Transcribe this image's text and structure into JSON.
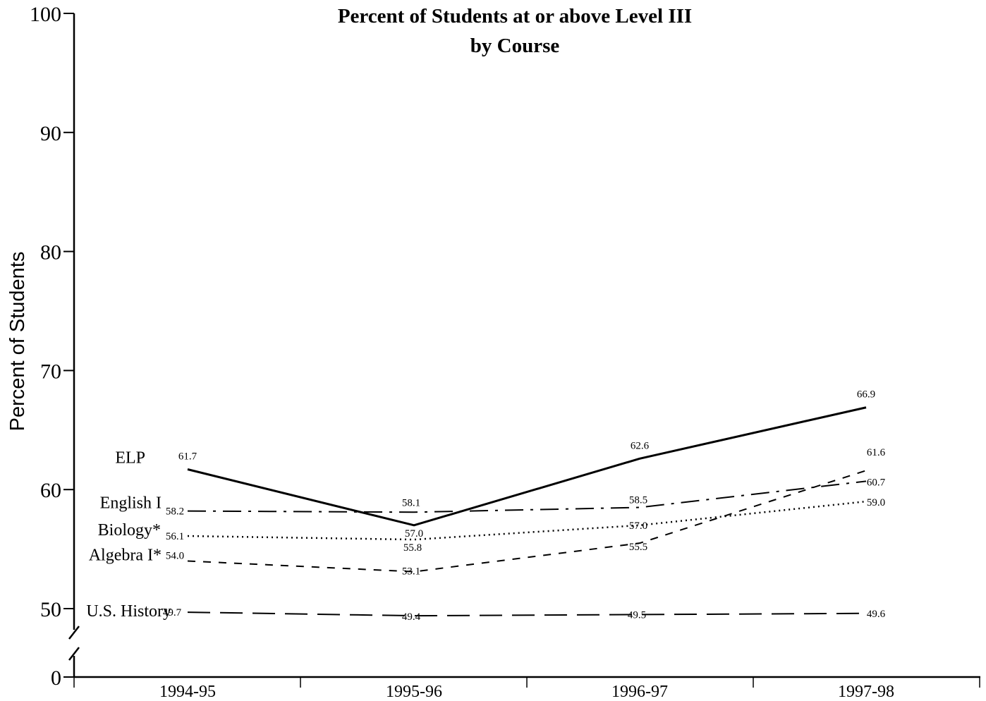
{
  "chart_data": {
    "type": "line",
    "title": "Percent of Students at or above Level III",
    "subtitle": "by Course",
    "ylabel": "Percent of Students",
    "xlabel": "",
    "categories": [
      "1994-95",
      "1995-96",
      "1996-97",
      "1997-98"
    ],
    "yticks": [
      "0",
      "50",
      "60",
      "70",
      "80",
      "90",
      "100"
    ],
    "ylim": [
      50,
      100
    ],
    "axis_break": true,
    "grid": false,
    "legend": "direct labels at left of lines",
    "series": [
      {
        "name": "ELP",
        "values": [
          61.7,
          57.0,
          62.6,
          66.9
        ],
        "labels": [
          "61.7",
          "57.0",
          "62.6",
          "66.9"
        ],
        "style": "solid"
      },
      {
        "name": "English I",
        "values": [
          58.2,
          58.1,
          58.5,
          60.7
        ],
        "labels": [
          "58.2",
          "58.1",
          "58.5",
          "60.7"
        ],
        "style": "dash-dot"
      },
      {
        "name": "Biology*",
        "values": [
          56.1,
          55.8,
          57.0,
          59.0
        ],
        "labels": [
          "56.1",
          "55.8",
          "57.0",
          "59.0"
        ],
        "style": "dotted"
      },
      {
        "name": "Algebra I*",
        "values": [
          54.0,
          53.1,
          55.5,
          61.6
        ],
        "labels": [
          "54.0",
          "53.1",
          "55.5",
          "61.6"
        ],
        "style": "short-dash"
      },
      {
        "name": "U.S. History",
        "values": [
          49.7,
          49.4,
          49.5,
          49.6
        ],
        "labels": [
          "49.7",
          "49.4",
          "49.5",
          "49.6"
        ],
        "style": "long-dash"
      }
    ]
  }
}
